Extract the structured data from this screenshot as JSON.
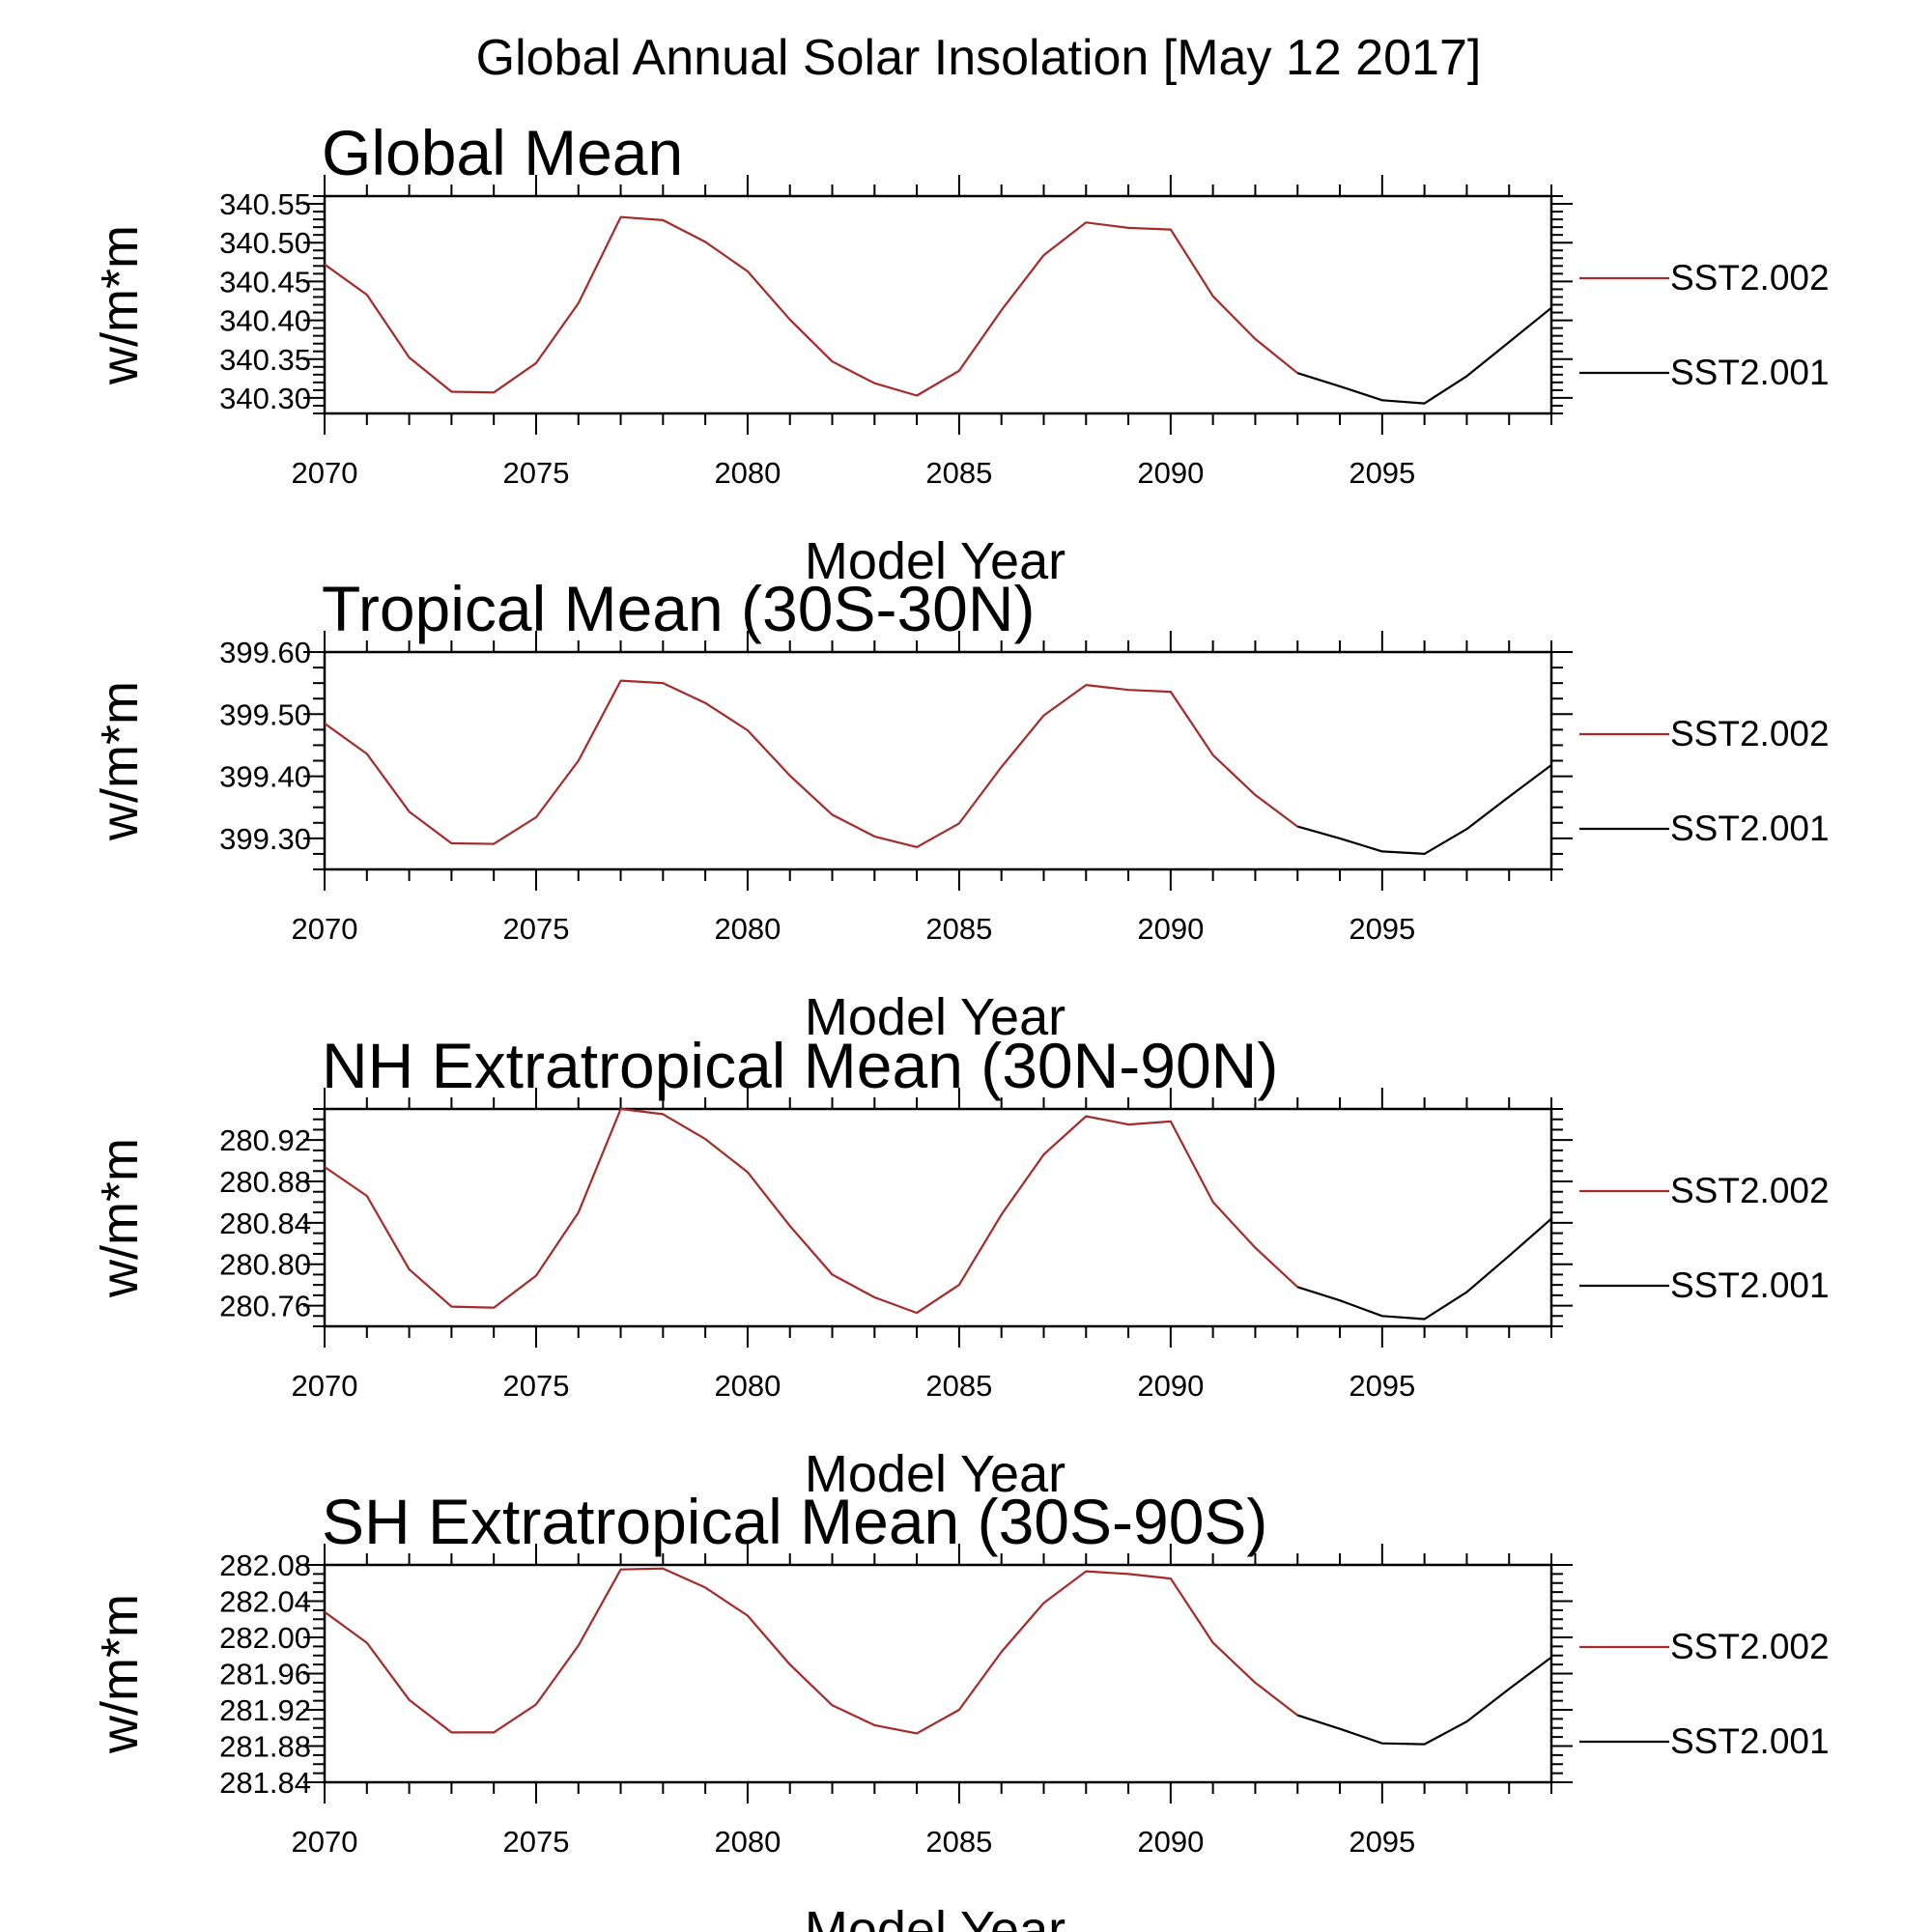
{
  "figure_title": "Global Annual Solar Insolation [May 12 2017]",
  "colors": {
    "SST2.002": "#a52a2a",
    "SST2.001": "#000000"
  },
  "chart_data": [
    {
      "type": "line",
      "title": "Global Mean",
      "xlabel": "Model Year",
      "ylabel": "w/m*m",
      "xlim": [
        2070,
        2099
      ],
      "ylim": [
        340.28,
        340.56
      ],
      "xticks": [
        2070,
        2075,
        2080,
        2085,
        2090,
        2095
      ],
      "yticks": [
        "340.30",
        "340.35",
        "340.40",
        "340.45",
        "340.50",
        "340.55"
      ],
      "legend": [
        "SST2.002",
        "SST2.001"
      ],
      "series": [
        {
          "name": "SST2.002",
          "x": [
            2070,
            2071,
            2072,
            2073,
            2074,
            2075,
            2076,
            2077,
            2078,
            2079,
            2080,
            2081,
            2082,
            2083,
            2084,
            2085,
            2086,
            2087,
            2088,
            2089,
            2090,
            2091,
            2092,
            2093
          ],
          "values": [
            340.472,
            340.433,
            340.352,
            340.308,
            340.307,
            340.345,
            340.422,
            340.533,
            340.529,
            340.501,
            340.463,
            340.401,
            340.347,
            340.319,
            340.303,
            340.335,
            340.413,
            340.484,
            340.526,
            340.519,
            340.517,
            340.431,
            340.376,
            340.332
          ]
        },
        {
          "name": "SST2.001",
          "x": [
            2093,
            2094,
            2095,
            2096,
            2097,
            2098,
            2099
          ],
          "values": [
            340.332,
            340.315,
            340.297,
            340.293,
            340.328,
            340.372,
            340.416
          ]
        }
      ]
    },
    {
      "type": "line",
      "title": "Tropical Mean (30S-30N)",
      "xlabel": "Model Year",
      "ylabel": "w/m*m",
      "xlim": [
        2070,
        2099
      ],
      "ylim": [
        399.25,
        399.6
      ],
      "xticks": [
        2070,
        2075,
        2080,
        2085,
        2090,
        2095
      ],
      "yticks": [
        "399.30",
        "399.40",
        "399.50",
        "399.60"
      ],
      "legend": [
        "SST2.002",
        "SST2.001"
      ],
      "series": [
        {
          "name": "SST2.002",
          "x": [
            2070,
            2071,
            2072,
            2073,
            2074,
            2075,
            2076,
            2077,
            2078,
            2079,
            2080,
            2081,
            2082,
            2083,
            2084,
            2085,
            2086,
            2087,
            2088,
            2089,
            2090,
            2091,
            2092,
            2093
          ],
          "values": [
            399.485,
            399.436,
            399.343,
            399.292,
            399.291,
            399.334,
            399.425,
            399.554,
            399.55,
            399.518,
            399.474,
            399.401,
            399.338,
            399.303,
            399.286,
            399.324,
            399.415,
            399.498,
            399.547,
            399.539,
            399.536,
            399.434,
            399.37,
            399.319
          ]
        },
        {
          "name": "SST2.001",
          "x": [
            2093,
            2094,
            2095,
            2096,
            2097,
            2098,
            2099
          ],
          "values": [
            399.319,
            399.3,
            399.279,
            399.275,
            399.315,
            399.367,
            399.418
          ]
        }
      ]
    },
    {
      "type": "line",
      "title": "NH Extratropical Mean (30N-90N)",
      "xlabel": "Model Year",
      "ylabel": "w/m*m",
      "xlim": [
        2070,
        2099
      ],
      "ylim": [
        280.74,
        280.95
      ],
      "xticks": [
        2070,
        2075,
        2080,
        2085,
        2090,
        2095
      ],
      "yticks": [
        "280.76",
        "280.80",
        "280.84",
        "280.88",
        "280.92"
      ],
      "legend": [
        "SST2.002",
        "SST2.001"
      ],
      "series": [
        {
          "name": "SST2.002",
          "x": [
            2070,
            2071,
            2072,
            2073,
            2074,
            2075,
            2076,
            2077,
            2078,
            2079,
            2080,
            2081,
            2082,
            2083,
            2084,
            2085,
            2086,
            2087,
            2088,
            2089,
            2090,
            2091,
            2092,
            2093
          ],
          "values": [
            280.894,
            280.866,
            280.795,
            280.759,
            280.758,
            280.789,
            280.85,
            280.95,
            280.945,
            280.921,
            280.889,
            280.837,
            280.79,
            280.768,
            280.753,
            280.78,
            280.848,
            280.906,
            280.943,
            280.935,
            280.938,
            280.86,
            280.816,
            280.778
          ]
        },
        {
          "name": "SST2.001",
          "x": [
            2093,
            2094,
            2095,
            2096,
            2097,
            2098,
            2099
          ],
          "values": [
            280.778,
            280.765,
            280.75,
            280.747,
            280.773,
            280.808,
            280.844
          ]
        }
      ]
    },
    {
      "type": "line",
      "title": "SH Extratropical Mean (30S-90S)",
      "xlabel": "Model Year",
      "ylabel": "w/m*m",
      "xlim": [
        2070,
        2099
      ],
      "ylim": [
        281.84,
        282.08
      ],
      "xticks": [
        2070,
        2075,
        2080,
        2085,
        2090,
        2095
      ],
      "yticks": [
        "281.84",
        "281.88",
        "281.92",
        "281.96",
        "282.00",
        "282.04",
        "282.08"
      ],
      "legend": [
        "SST2.002",
        "SST2.001"
      ],
      "series": [
        {
          "name": "SST2.002",
          "x": [
            2070,
            2071,
            2072,
            2073,
            2074,
            2075,
            2076,
            2077,
            2078,
            2079,
            2080,
            2081,
            2082,
            2083,
            2084,
            2085,
            2086,
            2087,
            2088,
            2089,
            2090,
            2091,
            2092,
            2093
          ],
          "values": [
            282.028,
            281.994,
            281.931,
            281.895,
            281.895,
            281.926,
            281.991,
            282.075,
            282.076,
            282.055,
            282.024,
            281.97,
            281.925,
            281.903,
            281.894,
            281.92,
            281.984,
            282.038,
            282.073,
            282.07,
            282.065,
            281.994,
            281.95,
            281.914
          ]
        },
        {
          "name": "SST2.001",
          "x": [
            2093,
            2094,
            2095,
            2096,
            2097,
            2098,
            2099
          ],
          "values": [
            281.914,
            281.899,
            281.883,
            281.882,
            281.907,
            281.943,
            281.978
          ]
        }
      ]
    }
  ]
}
